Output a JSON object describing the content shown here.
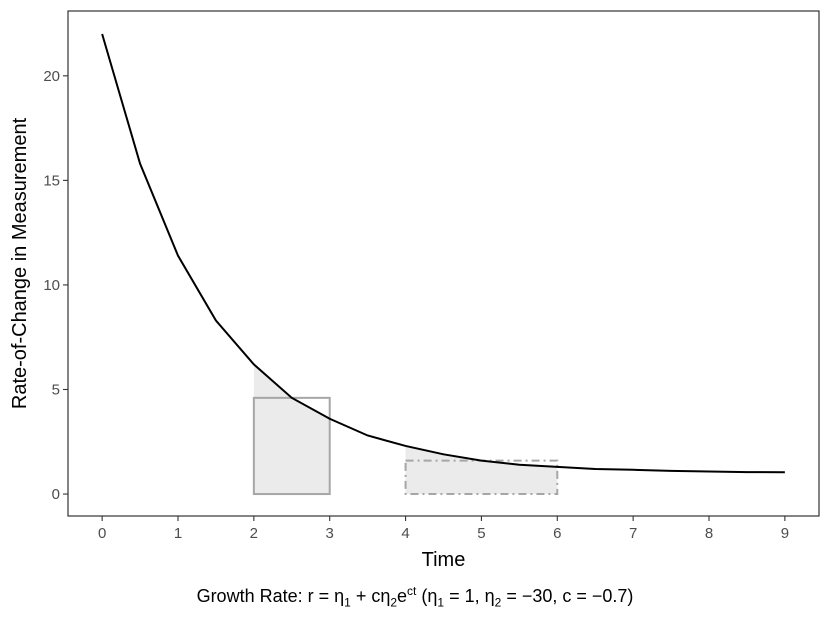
{
  "chart_data": {
    "type": "line",
    "title": "",
    "xlabel": "Time",
    "ylabel": "Rate-of-Change in Measurement",
    "xlim": [
      -0.45,
      9.45
    ],
    "ylim": [
      -1.05,
      23.1
    ],
    "x_ticks": [
      0,
      1,
      2,
      3,
      4,
      5,
      6,
      7,
      8,
      9
    ],
    "x_tick_labels": [
      "0",
      "1",
      "2",
      "3",
      "4",
      "5",
      "6",
      "7",
      "8",
      "9"
    ],
    "y_ticks": [
      0,
      5,
      10,
      15,
      20
    ],
    "y_tick_labels": [
      "0",
      "5",
      "10",
      "15",
      "20"
    ],
    "series": [
      {
        "x": [
          0.0,
          0.5,
          1.0,
          1.5,
          2.0,
          2.5,
          3.0,
          3.5,
          4.0,
          4.5,
          5.0,
          5.5,
          6.0,
          6.5,
          7.0,
          7.5,
          8.0,
          8.5,
          9.0
        ],
        "y": [
          22.0,
          15.8,
          11.4,
          8.3,
          6.2,
          4.6,
          3.6,
          2.8,
          2.3,
          1.9,
          1.6,
          1.4,
          1.3,
          1.2,
          1.16,
          1.11,
          1.08,
          1.05,
          1.04
        ]
      }
    ],
    "shaded_regions": [
      {
        "x_range": [
          2.0,
          3.0
        ],
        "y_value": 4.6,
        "rect_style": "solid"
      },
      {
        "x_range": [
          4.0,
          6.0
        ],
        "y_value": 1.6,
        "rect_style": "dashed"
      }
    ],
    "grid": false,
    "colors": {
      "line": "#000000",
      "fill": "#ebebeb",
      "rect_stroke": "#a6a6a6",
      "panel_border": "#333333"
    }
  },
  "caption": {
    "prefix": "Growth Rate: r = η",
    "sub1": "1",
    "plus": " + cη",
    "sub2": "2",
    "e": "e",
    "sup": "ct",
    "params": " (η",
    "p_sub1": "1",
    "p_mid1": " = 1, η",
    "p_sub2": "2",
    "p_rest": " = −30, c = −0.7)"
  }
}
